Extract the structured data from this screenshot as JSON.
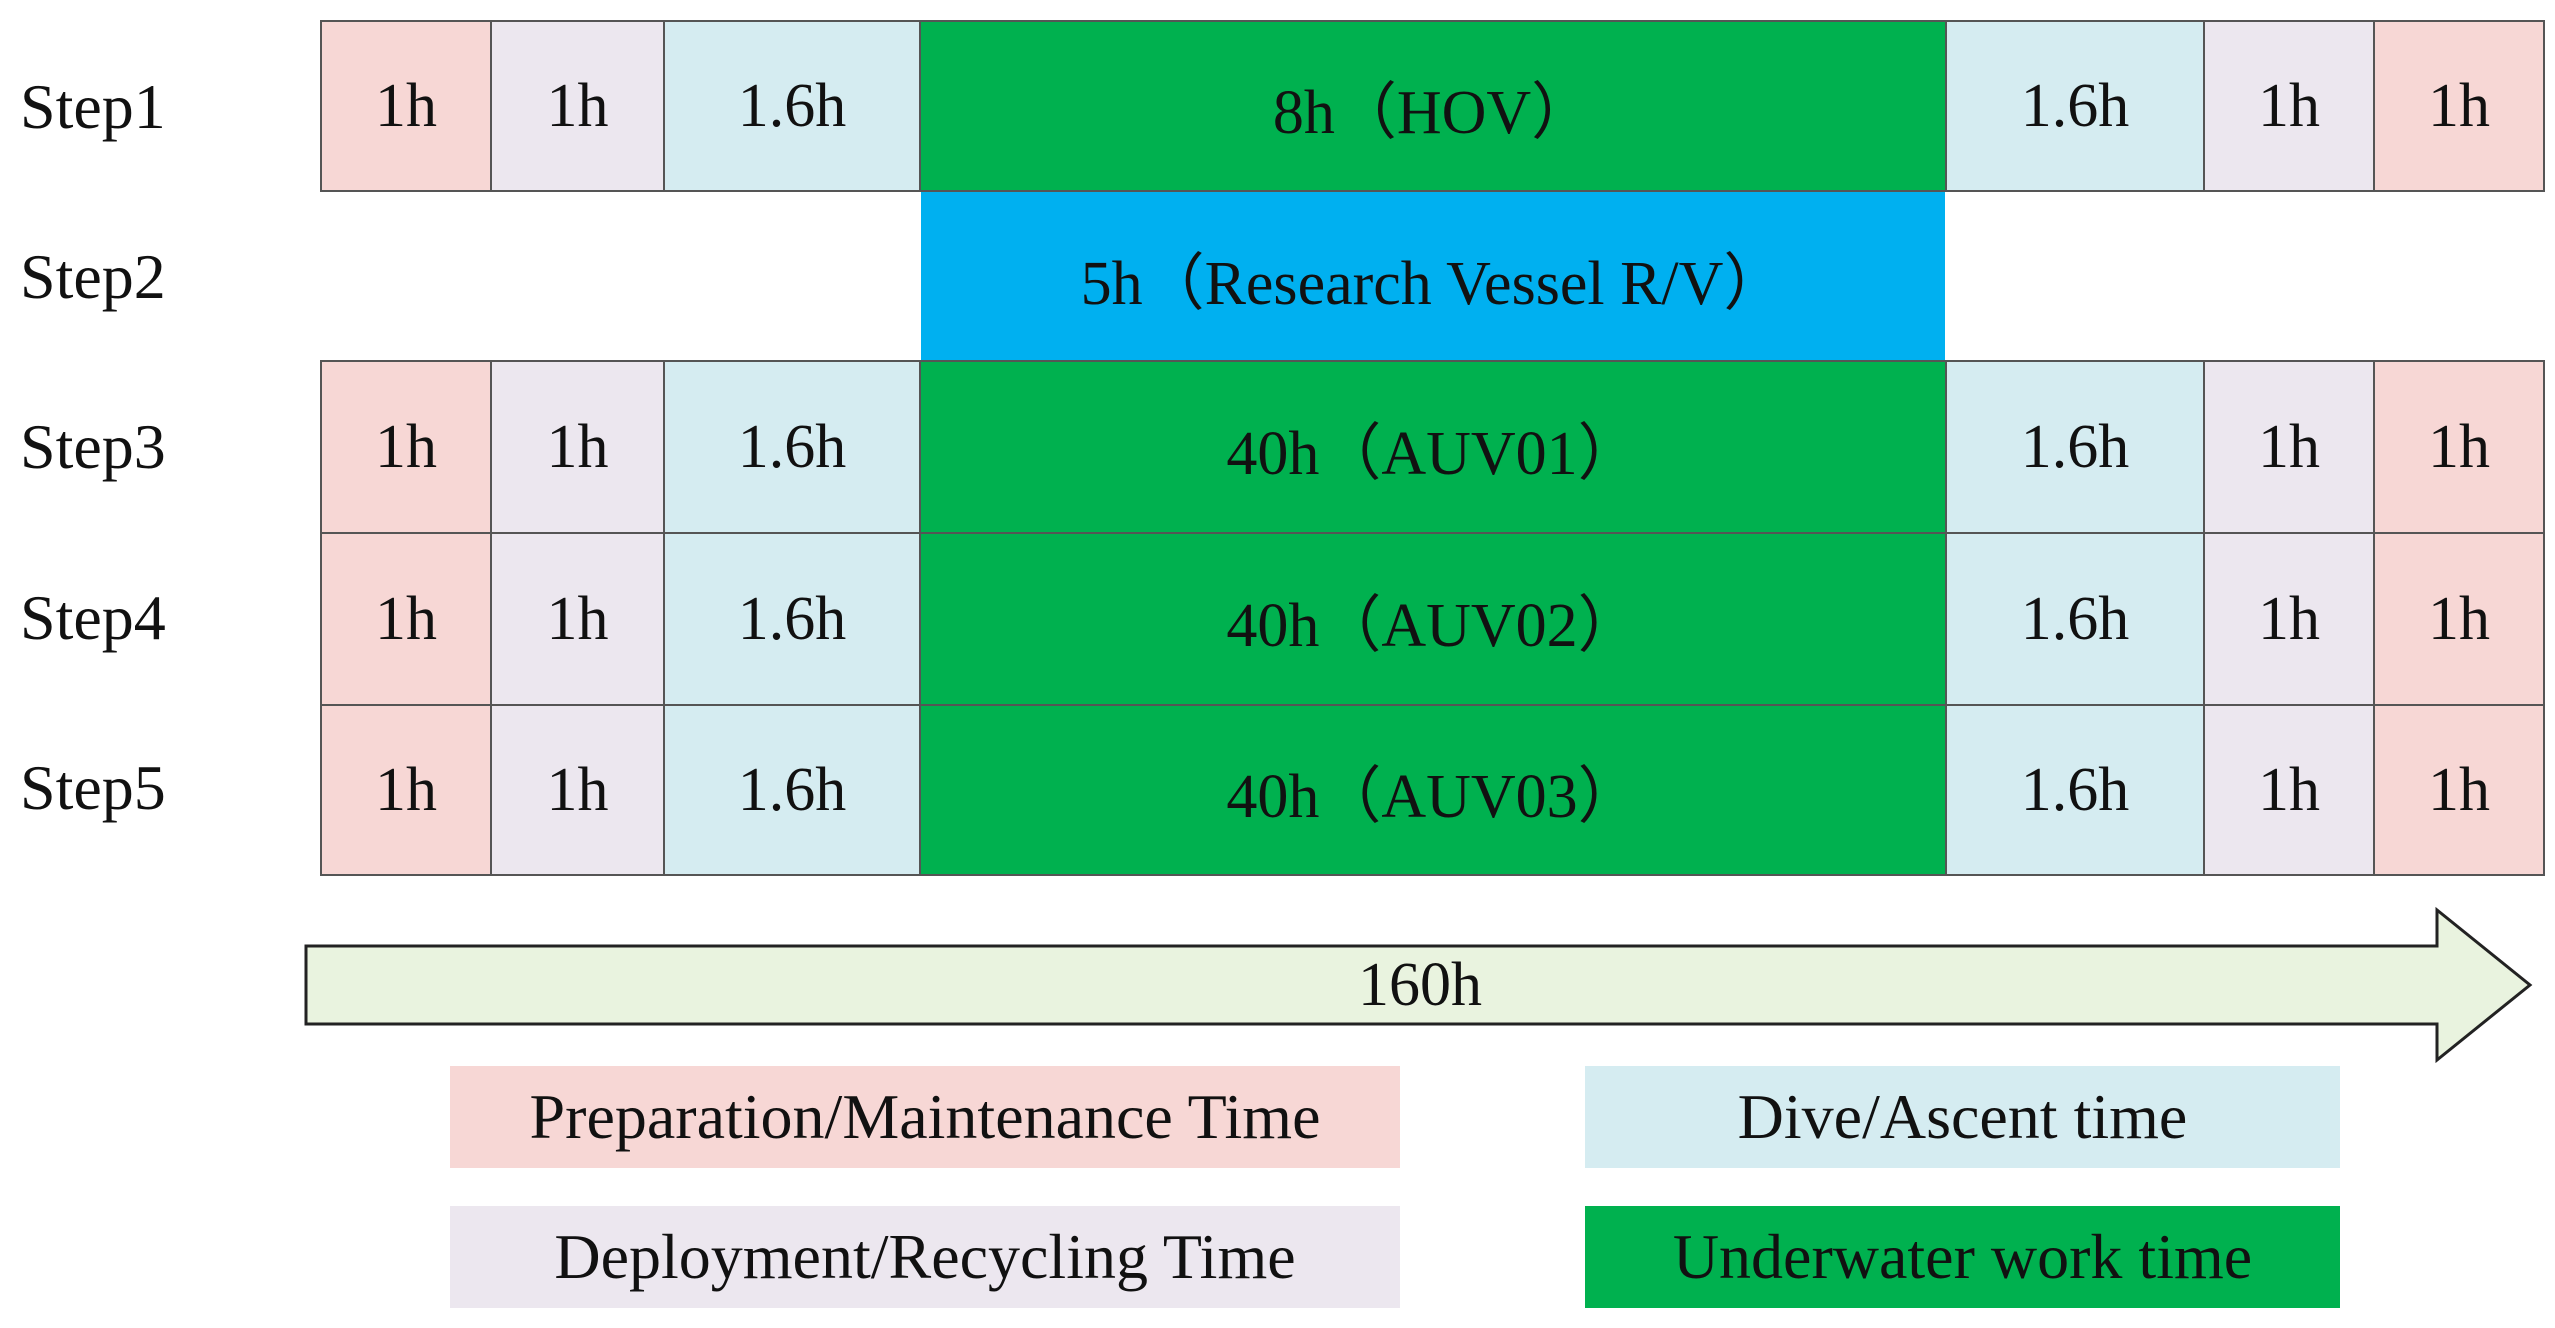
{
  "steps": [
    "Step1",
    "Step2",
    "Step3",
    "Step4",
    "Step5"
  ],
  "step1": {
    "cells": [
      "1h",
      "1h",
      "1.6h",
      "8h（HOV）",
      "1.6h",
      "1h",
      "1h"
    ]
  },
  "step2": {
    "label": "5h（Research Vessel R/V）"
  },
  "step3": {
    "cells": [
      "1h",
      "1h",
      "1.6h",
      "40h（AUV01）",
      "1.6h",
      "1h",
      "1h"
    ]
  },
  "step4": {
    "cells": [
      "1h",
      "1h",
      "1.6h",
      "40h（AUV02）",
      "1.6h",
      "1h",
      "1h"
    ]
  },
  "step5": {
    "cells": [
      "1h",
      "1h",
      "1.6h",
      "40h（AUV03）",
      "1.6h",
      "1h",
      "1h"
    ]
  },
  "timeline": {
    "total": "160h"
  },
  "legend": {
    "preparation": "Preparation/Maintenance Time",
    "deployment": "Deployment/Recycling Time",
    "dive": "Dive/Ascent time",
    "underwater": "Underwater work time"
  },
  "colors": {
    "preparation": "#f7d7d5",
    "deployment": "#ece7ef",
    "dive": "#d5ecf1",
    "underwater": "#00b14f",
    "research_vessel": "#00b0f0",
    "timeline_arrow": "#e9f3df"
  }
}
